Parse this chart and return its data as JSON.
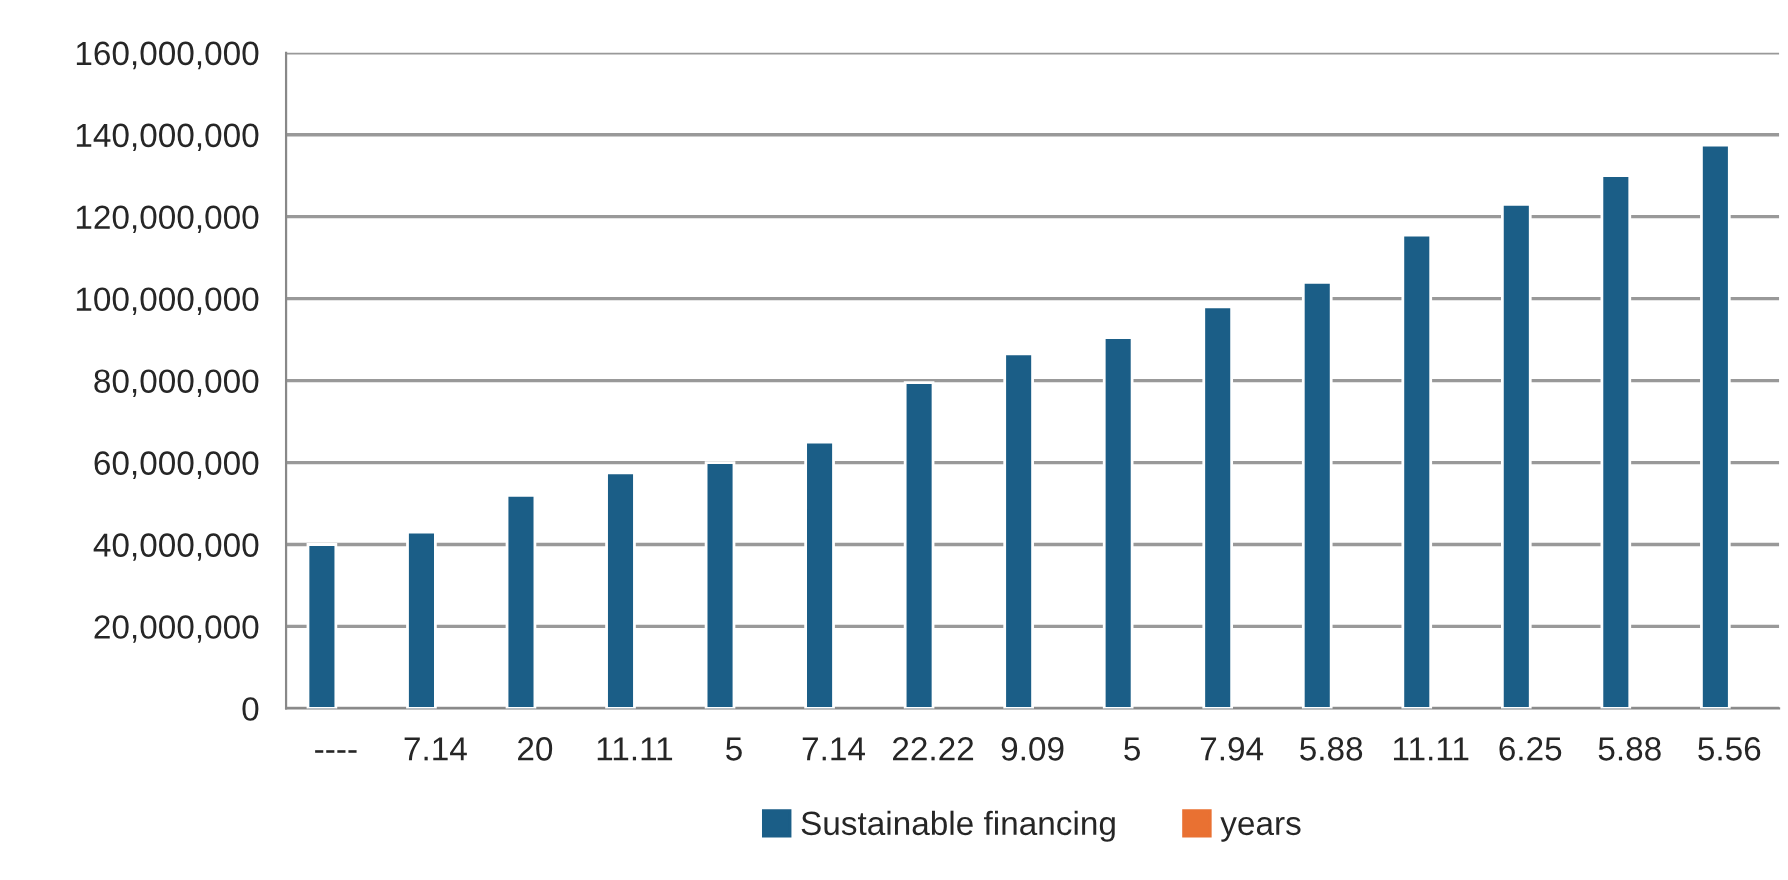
{
  "chart_data": {
    "type": "bar",
    "categories": [
      "----",
      "7.14",
      "20",
      "11.11",
      "5",
      "7.14",
      "22.22",
      "9.09",
      "5",
      "7.94",
      "5.88",
      "11.11",
      "6.25",
      "5.88",
      "5.56"
    ],
    "series": [
      {
        "name": "Sustainable financing",
        "color": "#1b5e87",
        "values": [
          40000000,
          43000000,
          52000000,
          57500000,
          60000000,
          65000000,
          79500000,
          86500000,
          90500000,
          98000000,
          104000000,
          115500000,
          123000000,
          130000000,
          137500000
        ]
      },
      {
        "name": "years",
        "color": "#e97132",
        "values": [
          null,
          null,
          null,
          null,
          null,
          null,
          null,
          null,
          null,
          null,
          null,
          null,
          null,
          null,
          null
        ]
      }
    ],
    "ylim": [
      0,
      160000000
    ],
    "yticks": [
      {
        "value": 0,
        "label": "0"
      },
      {
        "value": 20000000,
        "label": "20,000,000"
      },
      {
        "value": 40000000,
        "label": "40,000,000"
      },
      {
        "value": 60000000,
        "label": "60,000,000"
      },
      {
        "value": 80000000,
        "label": "80,000,000"
      },
      {
        "value": 100000000,
        "label": "100,000,000"
      },
      {
        "value": 120000000,
        "label": "120,000,000"
      },
      {
        "value": 140000000,
        "label": "140,000,000"
      },
      {
        "value": 160000000,
        "label": "160,000,000"
      }
    ],
    "grid": "y",
    "legend": "bottom"
  }
}
